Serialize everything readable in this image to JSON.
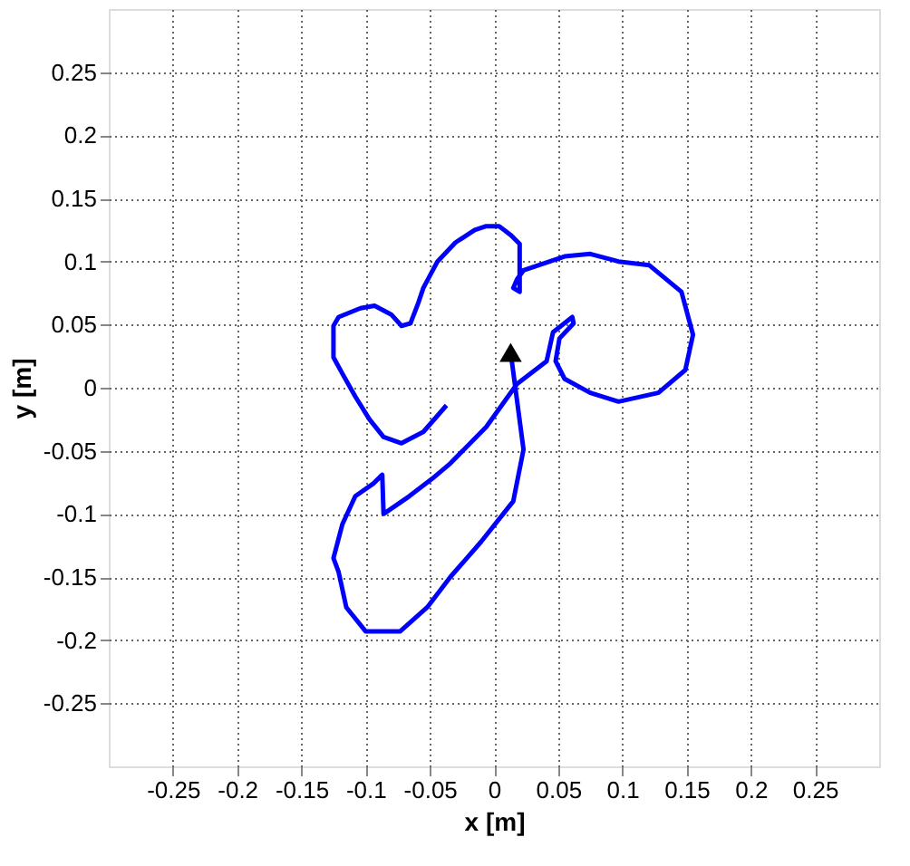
{
  "chart_data": {
    "type": "line",
    "xlabel": "x [m]",
    "ylabel": "y [m]",
    "xlim": [
      -0.3,
      0.3
    ],
    "ylim": [
      -0.3,
      0.3
    ],
    "xticks": [
      -0.25,
      -0.2,
      -0.15,
      -0.1,
      -0.05,
      0,
      0.05,
      0.1,
      0.15,
      0.2,
      0.25
    ],
    "yticks": [
      -0.25,
      -0.2,
      -0.15,
      -0.1,
      -0.05,
      0,
      0.05,
      0.1,
      0.15,
      0.2,
      0.25
    ],
    "grid": true,
    "legend": false,
    "series": [
      {
        "type": "line",
        "color": "#0000ff",
        "marker": "none",
        "line_style": "solid",
        "x": [
          0.013,
          0.023,
          0.015,
          -0.01,
          -0.034,
          -0.052,
          -0.073,
          -0.1,
          -0.115,
          -0.121,
          -0.125,
          -0.118,
          -0.108,
          -0.094,
          -0.087,
          -0.086,
          -0.076,
          -0.066,
          -0.048,
          -0.034,
          -0.006,
          0.018,
          0.041,
          0.046,
          0.061,
          0.062,
          0.051,
          0.048,
          0.055,
          0.075,
          0.097,
          0.128,
          0.149,
          0.155,
          0.146,
          0.121,
          0.097,
          0.075,
          0.055,
          0.023,
          0.018,
          0.015,
          0.02,
          0.02,
          0.013,
          0.004,
          -0.006,
          -0.015,
          -0.03,
          -0.044,
          -0.055,
          -0.059,
          -0.065,
          -0.072,
          -0.08,
          -0.093,
          -0.104,
          -0.121,
          -0.125,
          -0.125,
          -0.118,
          -0.108,
          -0.097,
          -0.086,
          -0.072,
          -0.055,
          -0.037
        ],
        "values": [
          0.028,
          -0.049,
          -0.09,
          -0.122,
          -0.15,
          -0.174,
          -0.193,
          -0.193,
          -0.174,
          -0.146,
          -0.135,
          -0.108,
          -0.086,
          -0.076,
          -0.069,
          -0.1,
          -0.093,
          -0.086,
          -0.072,
          -0.06,
          -0.031,
          0.003,
          0.021,
          0.044,
          0.056,
          0.051,
          0.039,
          0.021,
          0.007,
          -0.004,
          -0.011,
          -0.004,
          0.014,
          0.042,
          0.076,
          0.097,
          0.1,
          0.106,
          0.104,
          0.093,
          0.086,
          0.079,
          0.076,
          0.114,
          0.121,
          0.128,
          0.128,
          0.125,
          0.115,
          0.1,
          0.079,
          0.067,
          0.051,
          0.049,
          0.058,
          0.065,
          0.063,
          0.056,
          0.049,
          0.024,
          0.011,
          -0.007,
          -0.025,
          -0.039,
          -0.044,
          -0.035,
          -0.014
        ]
      },
      {
        "type": "scatter",
        "color": "#000000",
        "marker": "triangle",
        "x": [
          0.013
        ],
        "values": [
          0.028
        ]
      }
    ]
  }
}
